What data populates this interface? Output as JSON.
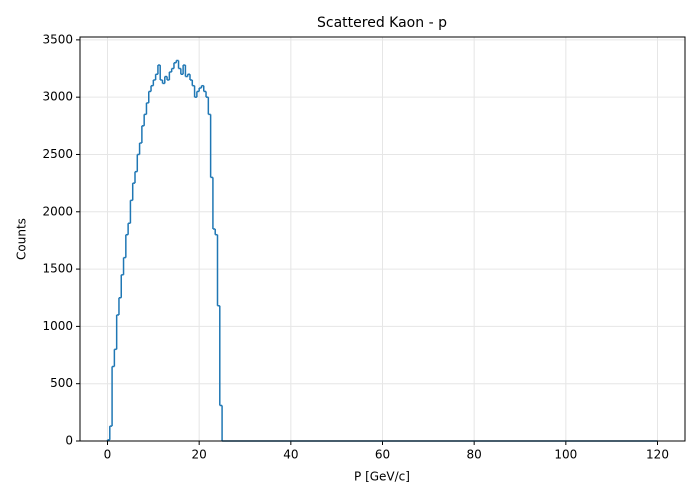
{
  "chart_data": {
    "type": "histogram",
    "title": "Scattered Kaon - p",
    "xlabel": "P [GeV/c]",
    "ylabel": "Counts",
    "bins": [
      0,
      0.5,
      1,
      1.5,
      2,
      2.5,
      3,
      3.5,
      4,
      4.5,
      5,
      5.5,
      6,
      6.5,
      7,
      7.5,
      8,
      8.5,
      9,
      9.5,
      10,
      10.5,
      11,
      11.5,
      12,
      12.5,
      13,
      13.5,
      14,
      14.5,
      15,
      15.5,
      16,
      16.5,
      17,
      17.5,
      18,
      18.5,
      19,
      19.5,
      20,
      20.5,
      21,
      21.5,
      22,
      22.5,
      23,
      23.5,
      24,
      24.5,
      25,
      120
    ],
    "values": [
      10,
      130,
      650,
      800,
      1100,
      1250,
      1450,
      1600,
      1800,
      1900,
      2100,
      2250,
      2350,
      2500,
      2600,
      2750,
      2850,
      2950,
      3050,
      3100,
      3150,
      3200,
      3280,
      3150,
      3120,
      3180,
      3150,
      3220,
      3250,
      3300,
      3320,
      3250,
      3200,
      3280,
      3180,
      3200,
      3150,
      3100,
      3000,
      3050,
      3080,
      3100,
      3050,
      3000,
      2850,
      2300,
      1850,
      1800,
      1180,
      310,
      0
    ],
    "color": "#1f77b4",
    "xlim": [
      -6,
      126
    ],
    "xticks": [
      0,
      20,
      40,
      60,
      80,
      100,
      120
    ],
    "ylim": [
      0,
      3525
    ],
    "yticks": [
      0,
      500,
      1000,
      1500,
      2000,
      2500,
      3000,
      3500
    ],
    "grid": true
  }
}
